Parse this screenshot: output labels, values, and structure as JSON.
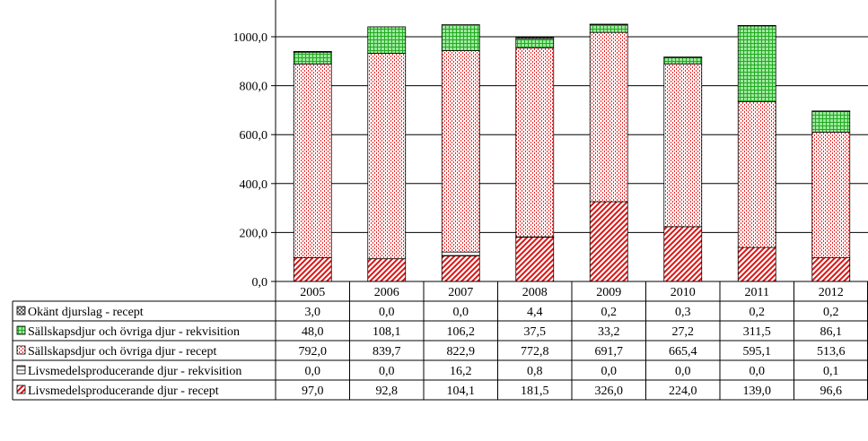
{
  "chart_data": {
    "type": "bar",
    "stacked": true,
    "categories": [
      "2005",
      "2006",
      "2007",
      "2008",
      "2009",
      "2010",
      "2011",
      "2012"
    ],
    "ylim": [
      0,
      1000
    ],
    "yticks": [
      "0,0",
      "200,0",
      "400,0",
      "600,0",
      "800,0",
      "1000,0"
    ],
    "ytick_values": [
      0,
      200,
      400,
      600,
      800,
      1000
    ],
    "grid": true,
    "legend": "data-table",
    "series": [
      {
        "name": "Okänt djurslag - recept",
        "pattern": "cross",
        "color": "#404040",
        "values": [
          3.0,
          0.0,
          0.0,
          4.4,
          0.2,
          0.3,
          0.2,
          0.2
        ],
        "labels": [
          "3,0",
          "0,0",
          "0,0",
          "4,4",
          "0,2",
          "0,3",
          "0,2",
          "0,2"
        ]
      },
      {
        "name": "Sällskapsdjur och övriga djur - rekvisition",
        "pattern": "grid",
        "color": "#33cc33",
        "values": [
          48.0,
          108.1,
          106.2,
          37.5,
          33.2,
          27.2,
          311.5,
          86.1
        ],
        "labels": [
          "48,0",
          "108,1",
          "106,2",
          "37,5",
          "33,2",
          "27,2",
          "311,5",
          "86,1"
        ]
      },
      {
        "name": "Sällskapsdjur och övriga djur - recept",
        "pattern": "dots",
        "color": "#ee2222",
        "values": [
          792.0,
          839.7,
          822.9,
          772.8,
          691.7,
          665.4,
          595.1,
          513.6
        ],
        "labels": [
          "792,0",
          "839,7",
          "822,9",
          "772,8",
          "691,7",
          "665,4",
          "595,1",
          "513,6"
        ]
      },
      {
        "name": "Livsmedelsproducerande djur - rekvisition",
        "pattern": "hstripe",
        "color": "#404040",
        "values": [
          0.0,
          0.0,
          16.2,
          0.8,
          0.0,
          0.0,
          0.0,
          0.1
        ],
        "labels": [
          "0,0",
          "0,0",
          "16,2",
          "0,8",
          "0,0",
          "0,0",
          "0,0",
          "0,1"
        ]
      },
      {
        "name": "Livsmedelsproducerande djur - recept",
        "pattern": "diag",
        "color": "#dd1111",
        "values": [
          97.0,
          92.8,
          104.1,
          181.5,
          326.0,
          224.0,
          139.0,
          96.6
        ],
        "labels": [
          "97,0",
          "92,8",
          "104,1",
          "181,5",
          "326,0",
          "224,0",
          "139,0",
          "96,6"
        ]
      }
    ],
    "stack_order_bottom_to_top": [
      4,
      3,
      2,
      1,
      0
    ]
  }
}
